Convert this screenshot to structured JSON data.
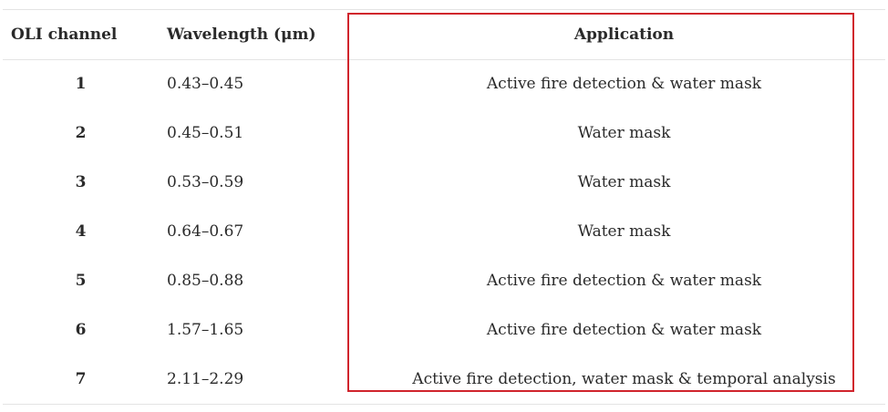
{
  "table": {
    "headers": {
      "channel": "OLI channel",
      "wavelength": "Wavelength (μm)",
      "application": "Application"
    },
    "rows": [
      {
        "channel": "1",
        "wavelength": "0.43–0.45",
        "application": "Active fire detection & water mask"
      },
      {
        "channel": "2",
        "wavelength": "0.45–0.51",
        "application": "Water mask"
      },
      {
        "channel": "3",
        "wavelength": "0.53–0.59",
        "application": "Water mask"
      },
      {
        "channel": "4",
        "wavelength": "0.64–0.67",
        "application": "Water mask"
      },
      {
        "channel": "5",
        "wavelength": "0.85–0.88",
        "application": "Active fire detection & water mask"
      },
      {
        "channel": "6",
        "wavelength": "1.57–1.65",
        "application": "Active fire detection & water mask"
      },
      {
        "channel": "7",
        "wavelength": "2.11–2.29",
        "application": "Active fire detection, water mask & temporal analysis"
      }
    ]
  },
  "highlight": {
    "color": "#d0242c",
    "target": "application-column"
  },
  "colors": {
    "text": "#2a2a2a",
    "rule": "#e4e4e4",
    "background": "#ffffff"
  }
}
